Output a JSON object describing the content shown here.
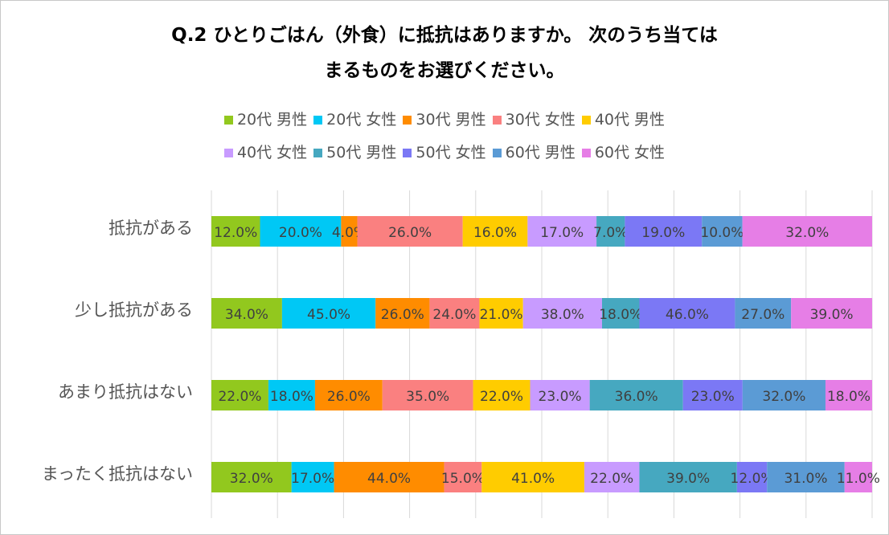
{
  "title_line1": "Q.2 ひとりごはん（外食）に抵抗はありますか。 次のうち当ては",
  "title_line2": "まるものをお選びください。",
  "chart_data": {
    "type": "bar",
    "orientation": "horizontal",
    "stacked": "percent",
    "categories": [
      "抵抗がある",
      "少し抵抗がある",
      "あまり抵抗はない",
      "まったく抵抗はない"
    ],
    "series": [
      {
        "name": "20代 男性",
        "color": "#92c81e",
        "values": [
          12.0,
          34.0,
          22.0,
          32.0
        ]
      },
      {
        "name": "20代 女性",
        "color": "#00c8f5",
        "values": [
          20.0,
          45.0,
          18.0,
          17.0
        ]
      },
      {
        "name": "30代 男性",
        "color": "#ff8c00",
        "values": [
          4.0,
          26.0,
          26.0,
          44.0
        ]
      },
      {
        "name": "30代 女性",
        "color": "#fa8080",
        "values": [
          26.0,
          24.0,
          35.0,
          15.0
        ]
      },
      {
        "name": "40代 男性",
        "color": "#ffcc00",
        "values": [
          16.0,
          21.0,
          22.0,
          41.0
        ]
      },
      {
        "name": "40代 女性",
        "color": "#c89bff",
        "values": [
          17.0,
          38.0,
          23.0,
          22.0
        ]
      },
      {
        "name": "50代 男性",
        "color": "#46a8c0",
        "values": [
          7.0,
          18.0,
          36.0,
          39.0
        ]
      },
      {
        "name": "50代 女性",
        "color": "#7b78f5",
        "values": [
          19.0,
          46.0,
          23.0,
          12.0
        ]
      },
      {
        "name": "60代 男性",
        "color": "#5b9bd5",
        "values": [
          10.0,
          27.0,
          32.0,
          31.0
        ]
      },
      {
        "name": "60代 女性",
        "color": "#e67ee6",
        "values": [
          32.0,
          39.0,
          18.0,
          11.0
        ]
      }
    ],
    "value_format": "%.1f%",
    "grid": true,
    "legend_position": "top"
  }
}
